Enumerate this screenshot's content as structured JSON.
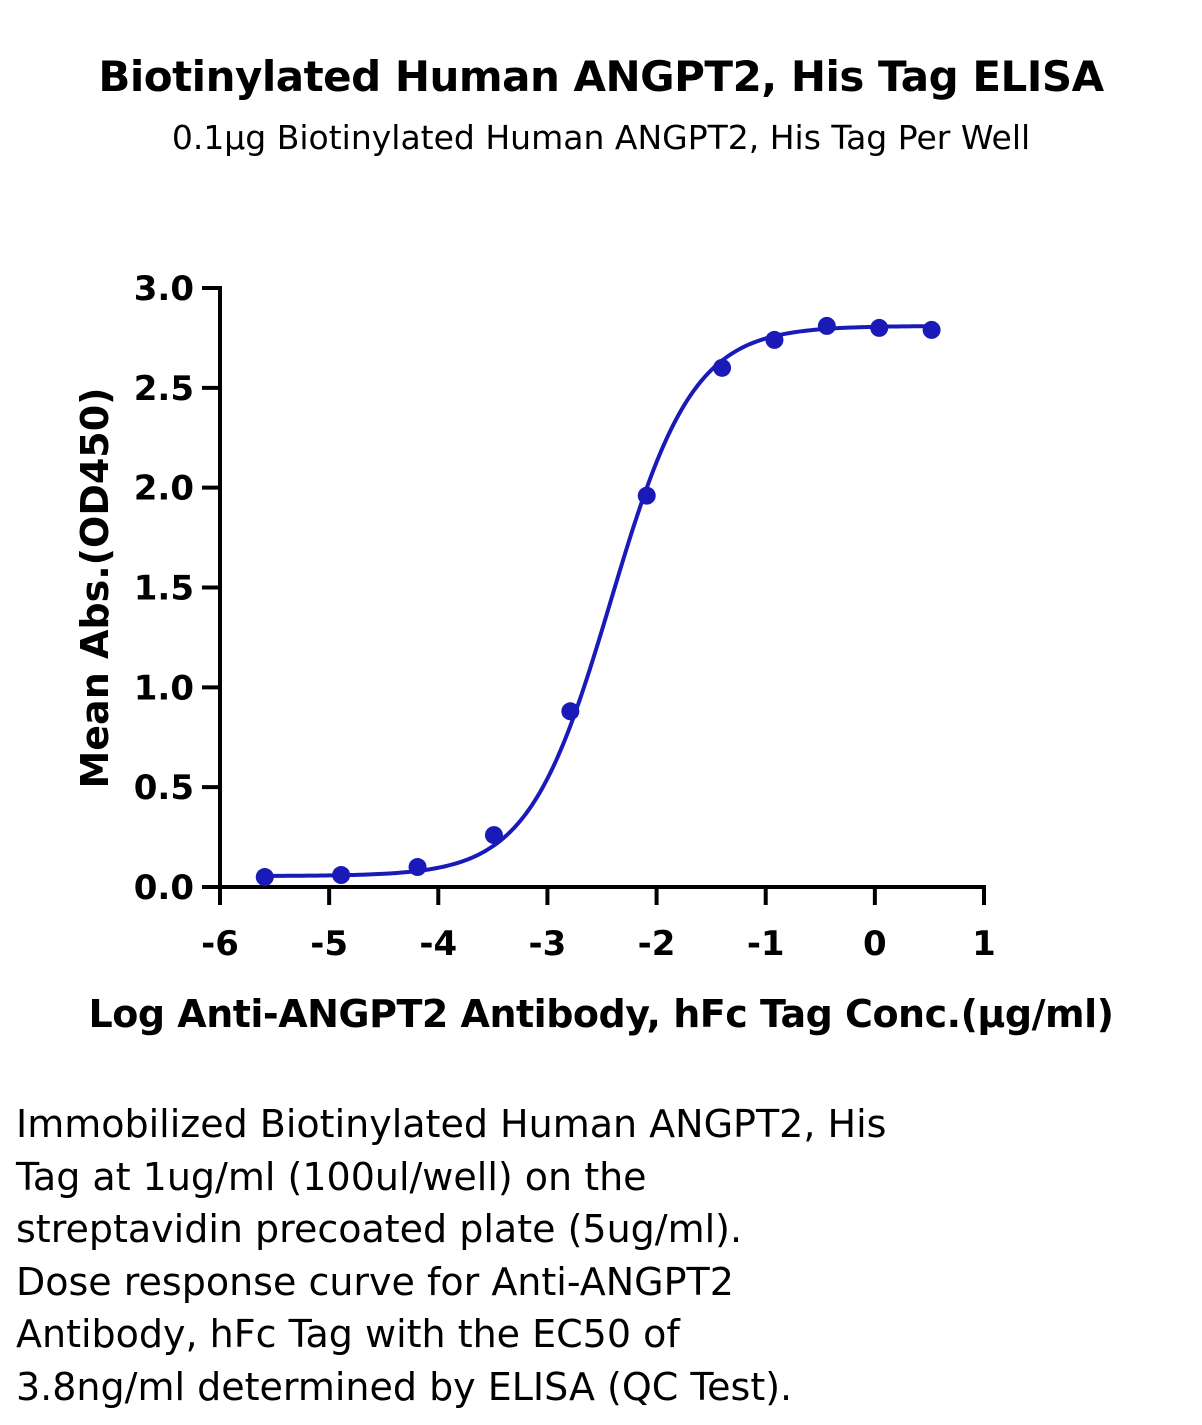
{
  "chart_data": {
    "type": "line",
    "title": "Biotinylated Human ANGPT2, His Tag ELISA",
    "subtitle": "0.1µg Biotinylated Human ANGPT2, His Tag Per Well",
    "xlabel": "Log Anti-ANGPT2 Antibody, hFc Tag Conc.(µg/ml)",
    "ylabel": "Mean Abs.(OD450)",
    "xlim": [
      -6,
      1
    ],
    "ylim": [
      0,
      3
    ],
    "xticks": [
      "-6",
      "-5",
      "-4",
      "-3",
      "-2",
      "-1",
      "0",
      "1"
    ],
    "yticks": [
      "0.0",
      "0.5",
      "1.0",
      "1.5",
      "2.0",
      "2.5",
      "3.0"
    ],
    "grid": false,
    "series": [
      {
        "x": [
          -5.59,
          -4.89,
          -4.19,
          -3.49,
          -2.79,
          -2.09,
          -1.4,
          -0.92,
          -0.44,
          0.04,
          0.52
        ],
        "y": [
          0.05,
          0.06,
          0.1,
          0.26,
          0.88,
          1.96,
          2.6,
          2.74,
          2.81,
          2.8,
          2.79
        ],
        "color": "#1a1ab8",
        "fit": {
          "bottom": 0.055,
          "top": 2.81,
          "logEC50": -2.42,
          "hill": 1.15
        }
      }
    ],
    "caption": [
      "Immobilized Biotinylated Human ANGPT2, His",
      "Tag at 1ug/ml (100ul/well) on the",
      "streptavidin precoated plate (5ug/ml).",
      "Dose response curve for Anti-ANGPT2",
      "Antibody, hFc Tag with the EC50 of",
      "3.8ng/ml determined by ELISA (QC Test)."
    ]
  }
}
